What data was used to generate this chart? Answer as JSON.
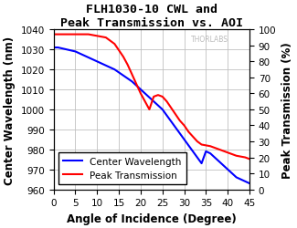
{
  "title": "FLH1030-10 CWL and\nPeak Transmission vs. AOI",
  "xlabel": "Angle of Incidence (Degree)",
  "ylabel_left": "Center Wavelength (nm)",
  "ylabel_right": "Peak Transmission (%)",
  "xlim": [
    0,
    45
  ],
  "ylim_left": [
    960,
    1040
  ],
  "ylim_right": [
    0,
    100
  ],
  "xticks": [
    0,
    5,
    10,
    15,
    20,
    25,
    30,
    35,
    40,
    45
  ],
  "yticks_left": [
    960,
    970,
    980,
    990,
    1000,
    1010,
    1020,
    1030,
    1040
  ],
  "yticks_right": [
    0,
    10,
    20,
    30,
    40,
    50,
    60,
    70,
    80,
    90,
    100
  ],
  "center_wavelength_x": [
    0,
    1,
    2,
    3,
    4,
    5,
    6,
    7,
    8,
    9,
    10,
    11,
    12,
    13,
    14,
    15,
    16,
    17,
    18,
    19,
    20,
    21,
    22,
    23,
    24,
    25,
    26,
    27,
    28,
    29,
    30,
    31,
    32,
    33,
    34,
    35,
    36,
    37,
    38,
    39,
    40,
    41,
    42,
    43,
    44,
    45
  ],
  "center_wavelength_y": [
    1031,
    1031,
    1030.5,
    1030,
    1029.5,
    1029,
    1028,
    1027,
    1026,
    1025,
    1024,
    1023,
    1022,
    1021,
    1020,
    1018.5,
    1017,
    1015.5,
    1014,
    1012,
    1010,
    1008,
    1006,
    1004,
    1002,
    1000,
    997,
    994,
    991,
    988,
    985,
    982,
    979,
    976,
    973,
    979,
    978,
    976,
    974,
    972,
    970,
    968,
    966,
    965,
    964,
    963
  ],
  "peak_transmission_x": [
    0,
    1,
    2,
    3,
    4,
    5,
    6,
    7,
    8,
    9,
    10,
    11,
    12,
    13,
    14,
    15,
    16,
    17,
    18,
    19,
    20,
    21,
    22,
    23,
    24,
    25,
    26,
    27,
    28,
    29,
    30,
    31,
    32,
    33,
    34,
    35,
    36,
    37,
    38,
    39,
    40,
    41,
    42,
    43,
    44,
    45
  ],
  "peak_transmission_y": [
    97,
    97,
    97,
    97,
    97,
    97,
    97,
    97,
    97,
    96.5,
    96,
    95.5,
    95,
    93,
    91,
    87,
    83,
    78,
    72,
    66,
    60,
    55,
    50,
    58,
    59,
    58,
    55,
    51,
    47,
    43,
    40,
    36,
    33,
    30,
    28,
    27.5,
    27,
    26,
    25,
    24,
    23,
    22,
    21,
    20.5,
    20,
    19
  ],
  "line_color_blue": "#0000FF",
  "line_color_red": "#FF0000",
  "legend_label_blue": "Center Wavelength",
  "legend_label_red": "Peak Transmission",
  "title_fontsize": 9.5,
  "axis_label_fontsize": 8.5,
  "tick_fontsize": 7.5,
  "legend_fontsize": 7.5,
  "background_color": "#ffffff",
  "grid_color": "#c0c0c0",
  "watermark": "THORLABS"
}
